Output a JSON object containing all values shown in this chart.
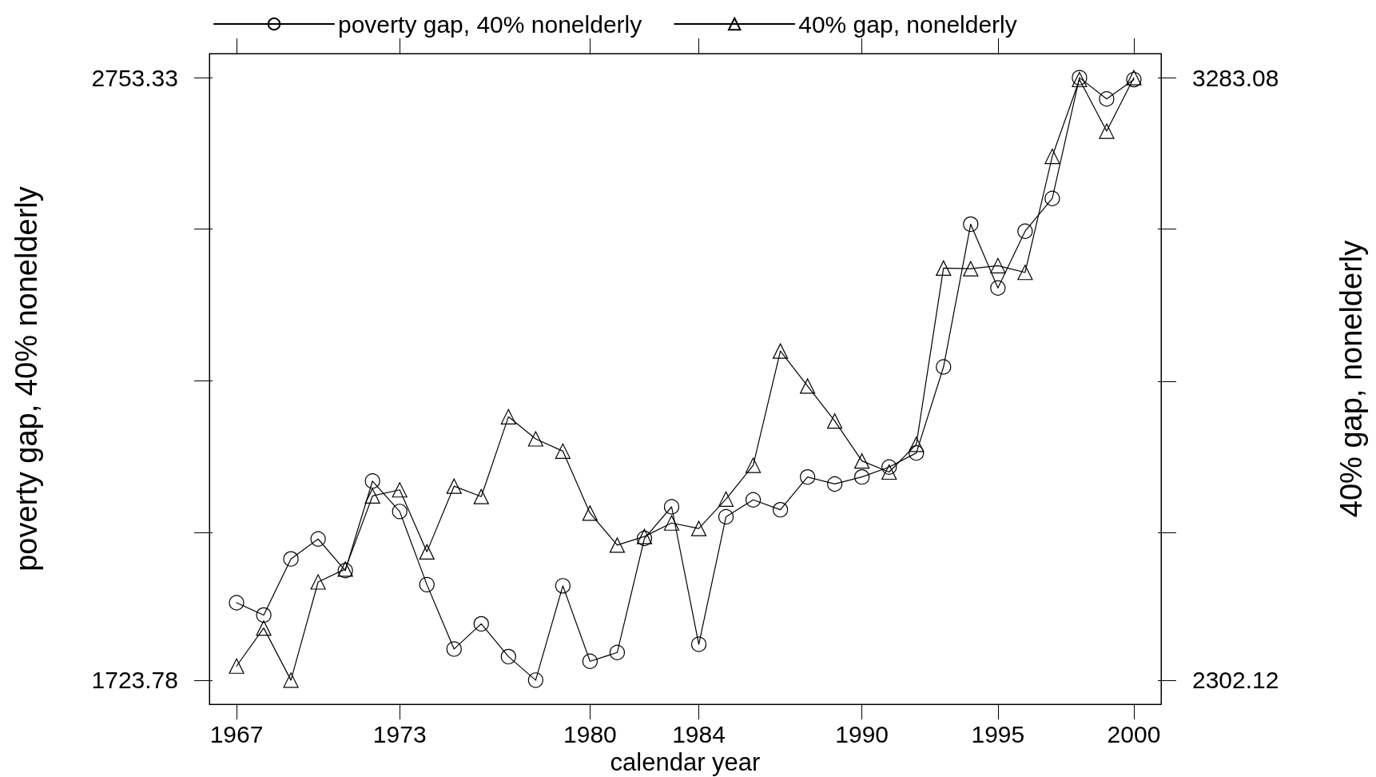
{
  "chart_data": {
    "type": "line",
    "xlabel": "calendar year",
    "ylabel": "poverty gap, 40% nonelderly",
    "y2label": "40% gap, nonelderly",
    "x": [
      1967,
      1968,
      1969,
      1970,
      1971,
      1972,
      1973,
      1974,
      1975,
      1976,
      1977,
      1978,
      1979,
      1980,
      1981,
      1982,
      1983,
      1984,
      1985,
      1986,
      1987,
      1988,
      1989,
      1990,
      1991,
      1992,
      1993,
      1994,
      1995,
      1996,
      1997,
      1998,
      1999,
      2000
    ],
    "series": [
      {
        "name": "poverty gap, 40% nonelderly",
        "color": "#000000",
        "marker": "circle",
        "values": [
          1856,
          1835,
          1931,
          1965,
          1911,
          2064,
          2012,
          1887,
          1777,
          1820,
          1764,
          1723.78,
          1885,
          1756,
          1771,
          1966,
          2020,
          1785,
          2003,
          2032,
          2015,
          2071,
          2059,
          2071,
          2088,
          2112,
          2259,
          2503,
          2394,
          2491,
          2547,
          2753.33,
          2717,
          2750
        ]
      },
      {
        "name": "40% gap, nonelderly",
        "color": "#000000",
        "marker": "triangle",
        "axis": "y2",
        "values": [
          2325,
          2387,
          2302.12,
          2462,
          2483,
          2602,
          2612,
          2511,
          2618,
          2601,
          2731,
          2695,
          2675,
          2574,
          2522,
          2536,
          2558,
          2549,
          2597,
          2652,
          2838,
          2781,
          2724,
          2659,
          2641,
          2686,
          2973,
          2972,
          2977,
          2966,
          3155,
          3280,
          3196,
          3283.08
        ]
      }
    ],
    "xlim": [
      1966,
      2001
    ],
    "xticks": [
      1967,
      1973,
      1980,
      1984,
      1990,
      1995,
      2000
    ],
    "ylim": [
      1682.6,
      2794.51
    ],
    "yticks": [
      1723.78,
      {
        "value": 1976,
        "label": null
      },
      {
        "value": 2235,
        "label": null
      },
      {
        "value": 2495,
        "label": null
      },
      2753.33
    ],
    "y2lim": [
      2262.88,
      3322.32
    ],
    "y2ticks": [
      2302.12,
      {
        "value": 2542,
        "label": null
      },
      {
        "value": 2789,
        "label": null
      },
      {
        "value": 3037,
        "label": null
      },
      3283.08
    ],
    "legend": "top left",
    "line_style": "solid"
  }
}
